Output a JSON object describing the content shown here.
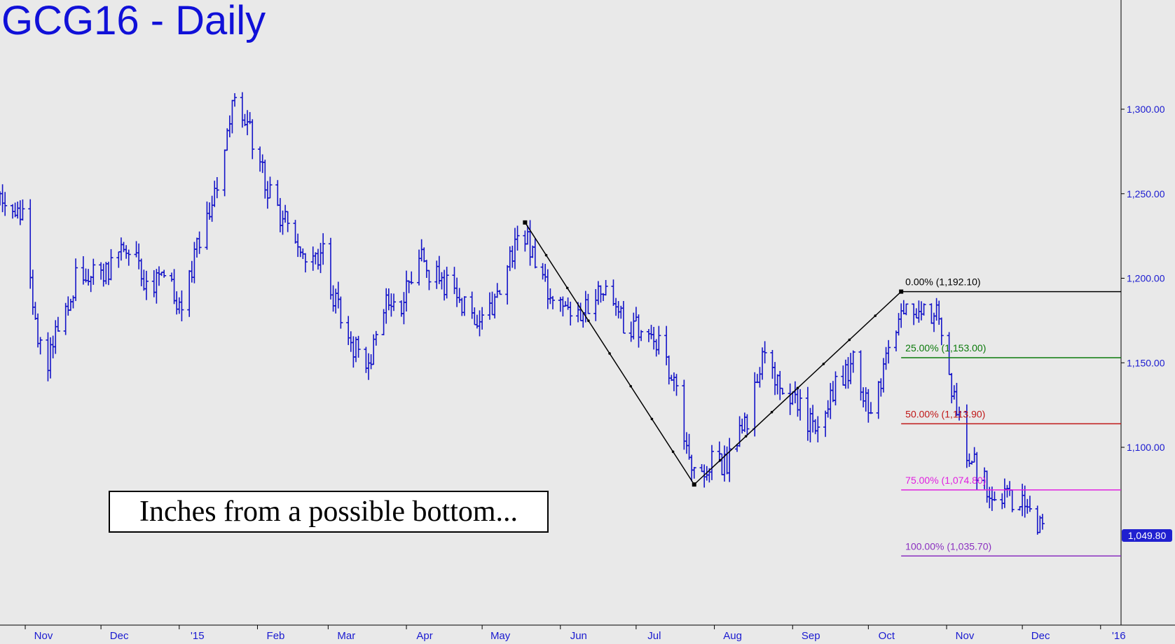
{
  "title": "GCG16 - Daily",
  "caption": "Inches from a possible bottom...",
  "colors": {
    "background": "#e9e9e9",
    "price_bars": "#1414c8",
    "title": "#1010d8",
    "axis_text": "#1a1ad0",
    "fib_0": "#000000",
    "fib_25": "#0a7a0a",
    "fib_50": "#c01818",
    "fib_75": "#e020e0",
    "fib_100": "#8a30c0"
  },
  "chart_data": {
    "type": "ohlc",
    "title": "GCG16 - Daily",
    "y_axis_side": "right",
    "ylim": [
      995,
      1365
    ],
    "y_ticks": [
      1100,
      1150,
      1200,
      1250,
      1300
    ],
    "y_tick_labels": [
      "1,100.00",
      "1,150.00",
      "1,200.00",
      "1,250.00",
      "1,300.00"
    ],
    "x_tick_labels": [
      "Nov",
      "Dec",
      "'15",
      "Feb",
      "Mar",
      "Apr",
      "May",
      "Jun",
      "Jul",
      "Aug",
      "Sep",
      "Oct",
      "Nov",
      "Dec",
      "'16"
    ],
    "last_price_label": "1,049.80",
    "swing_points": [
      {
        "date": "2015-05-18",
        "price": 1233
      },
      {
        "date": "2015-07-24",
        "price": 1078
      },
      {
        "date": "2015-10-14",
        "price": 1192.1
      }
    ],
    "fib_levels": [
      {
        "label": "0.00% (1,192.10)",
        "price": 1192.1,
        "color": "#000000"
      },
      {
        "label": "25.00% (1,153.00)",
        "price": 1153.0,
        "color": "#0a7a0a"
      },
      {
        "label": "50.00% (1,113.90)",
        "price": 1113.9,
        "color": "#c01818"
      },
      {
        "label": "75.00% (1,074.80)",
        "price": 1074.8,
        "color": "#e020e0"
      },
      {
        "label": "100.00% (1,035.70)",
        "price": 1035.7,
        "color": "#8a30c0"
      }
    ],
    "close_path": [
      [
        "2014-10-22",
        1250
      ],
      [
        "2014-10-31",
        1234
      ],
      [
        "2014-11-05",
        1170
      ],
      [
        "2014-11-10",
        1150
      ],
      [
        "2014-11-14",
        1172
      ],
      [
        "2014-11-21",
        1200
      ],
      [
        "2014-11-28",
        1200
      ],
      [
        "2014-12-05",
        1205
      ],
      [
        "2014-12-12",
        1220
      ],
      [
        "2014-12-19",
        1196
      ],
      [
        "2014-12-26",
        1197
      ],
      [
        "2015-01-02",
        1185
      ],
      [
        "2015-01-09",
        1222
      ],
      [
        "2015-01-16",
        1255
      ],
      [
        "2015-01-22",
        1300
      ],
      [
        "2015-01-27",
        1295
      ],
      [
        "2015-02-02",
        1268
      ],
      [
        "2015-02-06",
        1248
      ],
      [
        "2015-02-13",
        1232
      ],
      [
        "2015-02-20",
        1205
      ],
      [
        "2015-02-27",
        1213
      ],
      [
        "2015-03-06",
        1175
      ],
      [
        "2015-03-13",
        1155
      ],
      [
        "2015-03-17",
        1150
      ],
      [
        "2015-03-24",
        1190
      ],
      [
        "2015-03-31",
        1186
      ],
      [
        "2015-04-06",
        1218
      ],
      [
        "2015-04-10",
        1205
      ],
      [
        "2015-04-17",
        1196
      ],
      [
        "2015-04-24",
        1182
      ],
      [
        "2015-05-01",
        1175
      ],
      [
        "2015-05-08",
        1190
      ],
      [
        "2015-05-14",
        1220
      ],
      [
        "2015-05-18",
        1228
      ],
      [
        "2015-05-22",
        1208
      ],
      [
        "2015-05-29",
        1190
      ],
      [
        "2015-06-05",
        1176
      ],
      [
        "2015-06-12",
        1183
      ],
      [
        "2015-06-19",
        1200
      ],
      [
        "2015-06-26",
        1175
      ],
      [
        "2015-07-02",
        1168
      ],
      [
        "2015-07-10",
        1160
      ],
      [
        "2015-07-17",
        1135
      ],
      [
        "2015-07-20",
        1100
      ],
      [
        "2015-07-24",
        1085
      ],
      [
        "2015-07-31",
        1092
      ],
      [
        "2015-08-06",
        1090
      ],
      [
        "2015-08-14",
        1118
      ],
      [
        "2015-08-21",
        1160
      ],
      [
        "2015-08-28",
        1133
      ],
      [
        "2015-09-04",
        1122
      ],
      [
        "2015-09-11",
        1108
      ],
      [
        "2015-09-18",
        1138
      ],
      [
        "2015-09-25",
        1150
      ],
      [
        "2015-10-02",
        1114
      ],
      [
        "2015-10-09",
        1155
      ],
      [
        "2015-10-14",
        1188
      ],
      [
        "2015-10-21",
        1176
      ],
      [
        "2015-10-28",
        1178
      ],
      [
        "2015-11-03",
        1138
      ],
      [
        "2015-11-10",
        1093
      ],
      [
        "2015-11-17",
        1078
      ],
      [
        "2015-11-24",
        1073
      ],
      [
        "2015-12-01",
        1068
      ],
      [
        "2015-12-04",
        1059
      ],
      [
        "2015-12-09",
        1049.8
      ]
    ]
  }
}
